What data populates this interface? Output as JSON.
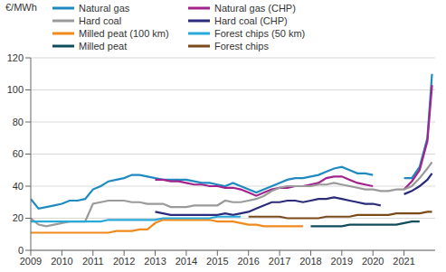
{
  "chart_data": {
    "type": "line",
    "y_label": "€/MWh",
    "x": [
      2009,
      2009.25,
      2009.5,
      2009.75,
      2010,
      2010.25,
      2010.5,
      2010.75,
      2011,
      2011.25,
      2011.5,
      2011.75,
      2012,
      2012.25,
      2012.5,
      2012.75,
      2013,
      2013.25,
      2013.5,
      2013.75,
      2014,
      2014.25,
      2014.5,
      2014.75,
      2015,
      2015.25,
      2015.5,
      2015.75,
      2016,
      2016.25,
      2016.5,
      2016.75,
      2017,
      2017.25,
      2017.5,
      2017.75,
      2018,
      2018.25,
      2018.5,
      2018.75,
      2019,
      2019.25,
      2019.5,
      2019.75,
      2020,
      2020.25,
      2020.5,
      2020.75,
      2021,
      2021.25,
      2021.5,
      2021.75,
      2021.9
    ],
    "xlim": [
      2009,
      2022
    ],
    "xticks": [
      2009,
      2010,
      2011,
      2012,
      2013,
      2014,
      2015,
      2016,
      2017,
      2018,
      2019,
      2020,
      2021
    ],
    "ylim": [
      0,
      120
    ],
    "yticks": [
      0,
      20,
      40,
      60,
      80,
      100,
      120
    ],
    "grid": true,
    "series": [
      {
        "name": "Natural gas",
        "color": "#1f8ac0",
        "values": [
          32,
          26,
          27,
          28,
          29,
          31,
          31,
          32,
          38,
          40,
          43,
          44,
          45,
          47,
          47,
          46,
          45,
          44,
          44,
          44,
          44,
          43,
          42,
          42,
          41,
          40,
          42,
          40,
          38,
          36,
          38,
          40,
          42,
          44,
          45,
          45,
          46,
          47,
          49,
          51,
          52,
          50,
          48,
          48,
          47,
          null,
          null,
          null,
          45,
          45,
          52,
          70,
          110
        ]
      },
      {
        "name": "Natural gas (CHP)",
        "color": "#a3238e",
        "values": [
          null,
          null,
          null,
          null,
          null,
          null,
          null,
          null,
          null,
          null,
          null,
          null,
          null,
          null,
          null,
          null,
          44,
          44,
          43,
          43,
          42,
          41,
          41,
          40,
          40,
          39,
          39,
          38,
          36,
          34,
          36,
          38,
          39,
          39,
          40,
          40,
          41,
          42,
          45,
          46,
          46,
          44,
          42,
          41,
          40,
          null,
          null,
          null,
          38,
          43,
          50,
          68,
          103
        ]
      },
      {
        "name": "Hard coal",
        "color": "#9a9a9a",
        "values": [
          20,
          16,
          15,
          16,
          17,
          18,
          18,
          18,
          29,
          30,
          31,
          31,
          31,
          30,
          30,
          29,
          29,
          29,
          27,
          27,
          27,
          28,
          28,
          28,
          28,
          31,
          30,
          30,
          31,
          32,
          34,
          37,
          39,
          40,
          40,
          40,
          40,
          41,
          41,
          42,
          41,
          40,
          39,
          38,
          38,
          37,
          37,
          38,
          38,
          40,
          45,
          51,
          55
        ]
      },
      {
        "name": "Hard coal (CHP)",
        "color": "#2b2b7c",
        "values": [
          null,
          null,
          null,
          null,
          null,
          null,
          null,
          null,
          null,
          null,
          null,
          null,
          null,
          null,
          null,
          null,
          24,
          23,
          22,
          22,
          22,
          22,
          22,
          22,
          22,
          23,
          22,
          23,
          24,
          26,
          28,
          30,
          30,
          31,
          31,
          30,
          31,
          32,
          32,
          33,
          32,
          31,
          30,
          29,
          29,
          28,
          null,
          null,
          35,
          37,
          40,
          44,
          48
        ]
      },
      {
        "name": "Milled peat (100 km)",
        "color": "#f08a1c",
        "values": [
          11,
          11,
          11,
          11,
          11,
          11,
          11,
          11,
          11,
          11,
          11,
          12,
          12,
          12,
          13,
          13,
          17,
          19,
          19,
          19,
          19,
          19,
          19,
          19,
          18,
          18,
          18,
          17,
          16,
          16,
          15,
          15,
          15,
          15,
          15,
          15,
          null,
          null,
          null,
          null,
          null,
          null,
          null,
          null,
          null,
          null,
          null,
          null,
          null,
          null,
          null,
          null,
          null
        ]
      },
      {
        "name": "Forest chips (50 km)",
        "color": "#29a9d8",
        "values": [
          18,
          18,
          18,
          18,
          18,
          18,
          18,
          18,
          18,
          18,
          19,
          19,
          19,
          19,
          19,
          19,
          19,
          20,
          20,
          20,
          20,
          20,
          20,
          20,
          21,
          21,
          21,
          21,
          null,
          null,
          null,
          null,
          null,
          null,
          null,
          null,
          null,
          null,
          null,
          null,
          null,
          null,
          null,
          null,
          null,
          null,
          null,
          null,
          null,
          null,
          null,
          null,
          null
        ]
      },
      {
        "name": "Milled peat",
        "color": "#0f4c5c",
        "values": [
          null,
          null,
          null,
          null,
          null,
          null,
          null,
          null,
          null,
          null,
          null,
          null,
          null,
          null,
          null,
          null,
          null,
          null,
          null,
          null,
          null,
          null,
          null,
          null,
          null,
          null,
          null,
          null,
          null,
          null,
          null,
          null,
          null,
          null,
          null,
          null,
          15,
          15,
          15,
          15,
          15,
          16,
          16,
          16,
          16,
          16,
          16,
          16,
          17,
          18,
          18,
          null,
          null
        ]
      },
      {
        "name": "Forest chips",
        "color": "#7b4a1a",
        "values": [
          null,
          null,
          null,
          null,
          null,
          null,
          null,
          null,
          null,
          null,
          null,
          null,
          null,
          null,
          null,
          null,
          null,
          null,
          null,
          null,
          null,
          null,
          null,
          null,
          null,
          null,
          null,
          null,
          21,
          21,
          21,
          21,
          21,
          20,
          20,
          20,
          20,
          20,
          21,
          21,
          21,
          21,
          22,
          22,
          22,
          22,
          22,
          23,
          23,
          23,
          23,
          24,
          24
        ]
      }
    ]
  }
}
